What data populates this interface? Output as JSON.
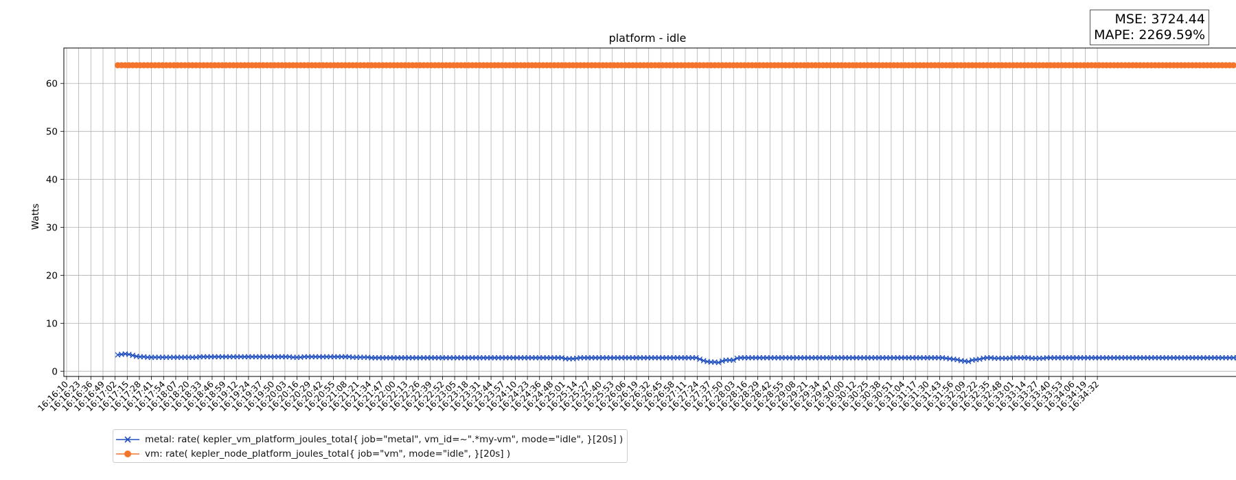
{
  "metrics": {
    "mse": "MSE: 3724.44",
    "mape": "MAPE: 2269.59%"
  },
  "chart_data": {
    "type": "line",
    "title": "platform - idle",
    "xlabel": "",
    "ylabel": "Watts",
    "ylim": [
      -1.1,
      67.4
    ],
    "yticks": [
      0,
      10,
      20,
      30,
      40,
      50,
      60
    ],
    "grid": true,
    "legend_position": "bottom-left",
    "x_tick_labels": [
      "16:16:10",
      "16:16:23",
      "16:16:36",
      "16:16:49",
      "16:17:02",
      "16:17:15",
      "16:17:28",
      "16:17:41",
      "16:17:54",
      "16:18:07",
      "16:18:20",
      "16:18:33",
      "16:18:46",
      "16:18:59",
      "16:19:12",
      "16:19:24",
      "16:19:37",
      "16:19:50",
      "16:20:03",
      "16:20:16",
      "16:20:29",
      "16:20:42",
      "16:20:55",
      "16:21:08",
      "16:21:21",
      "16:21:34",
      "16:21:47",
      "16:22:00",
      "16:22:13",
      "16:22:26",
      "16:22:39",
      "16:22:52",
      "16:23:05",
      "16:23:18",
      "16:23:31",
      "16:23:44",
      "16:23:57",
      "16:24:10",
      "16:24:23",
      "16:24:36",
      "16:24:48",
      "16:25:01",
      "16:25:14",
      "16:25:27",
      "16:25:40",
      "16:25:53",
      "16:26:06",
      "16:26:19",
      "16:26:32",
      "16:26:45",
      "16:26:58",
      "16:27:11",
      "16:27:24",
      "16:27:37",
      "16:27:50",
      "16:28:03",
      "16:28:16",
      "16:28:29",
      "16:28:42",
      "16:28:55",
      "16:29:08",
      "16:29:21",
      "16:29:34",
      "16:29:47",
      "16:30:00",
      "16:30:12",
      "16:30:25",
      "16:30:38",
      "16:30:51",
      "16:31:04",
      "16:31:17",
      "16:31:30",
      "16:31:43",
      "16:31:56",
      "16:32:09",
      "16:32:22",
      "16:32:35",
      "16:32:48",
      "16:33:01",
      "16:33:14",
      "16:33:27",
      "16:33:40",
      "16:33:53",
      "16:34:06",
      "16:34:19",
      "16:34:32"
    ],
    "x_start": "16:17:06",
    "x_step_seconds": 4,
    "series": [
      {
        "name": "metal: rate( kepler_vm_platform_joules_total{ job=\"metal\", vm_id=~\".*my-vm\", mode=\"idle\", }[20s] )",
        "color": "#1f4fbf",
        "marker": "x",
        "values": [
          3.4,
          3.5,
          3.6,
          3.5,
          3.3,
          3.1,
          3.0,
          3.0,
          2.9,
          2.9,
          2.9,
          2.9,
          2.9,
          2.9,
          2.9,
          2.9,
          2.9,
          2.9,
          2.9,
          2.9,
          2.9,
          2.9,
          3.0,
          3.0,
          3.0,
          3.0,
          3.0,
          3.0,
          3.0,
          3.0,
          3.0,
          3.0,
          3.0,
          3.0,
          3.0,
          3.0,
          3.0,
          3.0,
          3.0,
          3.0,
          3.0,
          3.0,
          3.0,
          3.0,
          3.0,
          3.0,
          3.0,
          2.9,
          2.9,
          2.9,
          3.0,
          3.0,
          3.0,
          3.0,
          3.0,
          3.0,
          3.0,
          3.0,
          3.0,
          3.0,
          3.0,
          3.0,
          3.0,
          2.9,
          2.9,
          2.9,
          2.9,
          2.9,
          2.8,
          2.8,
          2.8,
          2.8,
          2.8,
          2.8,
          2.8,
          2.8,
          2.8,
          2.8,
          2.8,
          2.8,
          2.8,
          2.8,
          2.8,
          2.8,
          2.8,
          2.8,
          2.8,
          2.8,
          2.8,
          2.8,
          2.8,
          2.8,
          2.8,
          2.8,
          2.8,
          2.8,
          2.8,
          2.8,
          2.8,
          2.8,
          2.8,
          2.8,
          2.8,
          2.8,
          2.8,
          2.8,
          2.8,
          2.8,
          2.8,
          2.8,
          2.8,
          2.8,
          2.8,
          2.8,
          2.8,
          2.8,
          2.8,
          2.8,
          2.8,
          2.8,
          2.6,
          2.6,
          2.6,
          2.7,
          2.8,
          2.8,
          2.8,
          2.8,
          2.8,
          2.8,
          2.8,
          2.8,
          2.8,
          2.8,
          2.8,
          2.8,
          2.8,
          2.8,
          2.8,
          2.8,
          2.8,
          2.8,
          2.8,
          2.8,
          2.8,
          2.8,
          2.8,
          2.8,
          2.8,
          2.8,
          2.8,
          2.8,
          2.8,
          2.8,
          2.8,
          2.8,
          2.5,
          2.2,
          2.0,
          1.9,
          1.9,
          1.8,
          2.1,
          2.3,
          2.3,
          2.3,
          2.7,
          2.8,
          2.8,
          2.8,
          2.8,
          2.8,
          2.8,
          2.8,
          2.8,
          2.8,
          2.8,
          2.8,
          2.8,
          2.8,
          2.8,
          2.8,
          2.8,
          2.8,
          2.8,
          2.8,
          2.8,
          2.8,
          2.8,
          2.8,
          2.8,
          2.8,
          2.8,
          2.8,
          2.8,
          2.8,
          2.8,
          2.8,
          2.8,
          2.8,
          2.8,
          2.8,
          2.8,
          2.8,
          2.8,
          2.8,
          2.8,
          2.8,
          2.8,
          2.8,
          2.8,
          2.8,
          2.8,
          2.8,
          2.8,
          2.8,
          2.8,
          2.8,
          2.8,
          2.8,
          2.8,
          2.8,
          2.7,
          2.6,
          2.5,
          2.4,
          2.2,
          2.1,
          2.0,
          2.3,
          2.4,
          2.5,
          2.7,
          2.8,
          2.8,
          2.7,
          2.7,
          2.7,
          2.7,
          2.7,
          2.8,
          2.8,
          2.8,
          2.8,
          2.8,
          2.7,
          2.7,
          2.7,
          2.7,
          2.8,
          2.8,
          2.8,
          2.8,
          2.8,
          2.8,
          2.8,
          2.8,
          2.8,
          2.8,
          2.8,
          2.8,
          2.8,
          2.8,
          2.8,
          2.8,
          2.8,
          2.8,
          2.8,
          2.8,
          2.8,
          2.8,
          2.8,
          2.8,
          2.8,
          2.8,
          2.8,
          2.8,
          2.8,
          2.8,
          2.8,
          2.8,
          2.8,
          2.8,
          2.8,
          2.8,
          2.8,
          2.8,
          2.8,
          2.8,
          2.8,
          2.8,
          2.8,
          2.8,
          2.8,
          2.8,
          2.8,
          2.8,
          2.8,
          2.8,
          2.8,
          2.8,
          2.8,
          2.8,
          2.8,
          2.8,
          2.8,
          2.8,
          2.8,
          2.8,
          2.8,
          2.8,
          2.8,
          2.8,
          2.8,
          2.8,
          2.8,
          2.8,
          2.8,
          2.8,
          2.8,
          2.8,
          2.8,
          2.8,
          2.8,
          2.8,
          2.8,
          2.8,
          2.8,
          2.8,
          2.8
        ]
      },
      {
        "name": "vm: rate( kepler_node_platform_joules_total{ job=\"vm\", mode=\"idle\", }[20s] )",
        "color": "#f4742b",
        "marker": "o",
        "constant_value": 63.8,
        "count": 300
      }
    ]
  }
}
